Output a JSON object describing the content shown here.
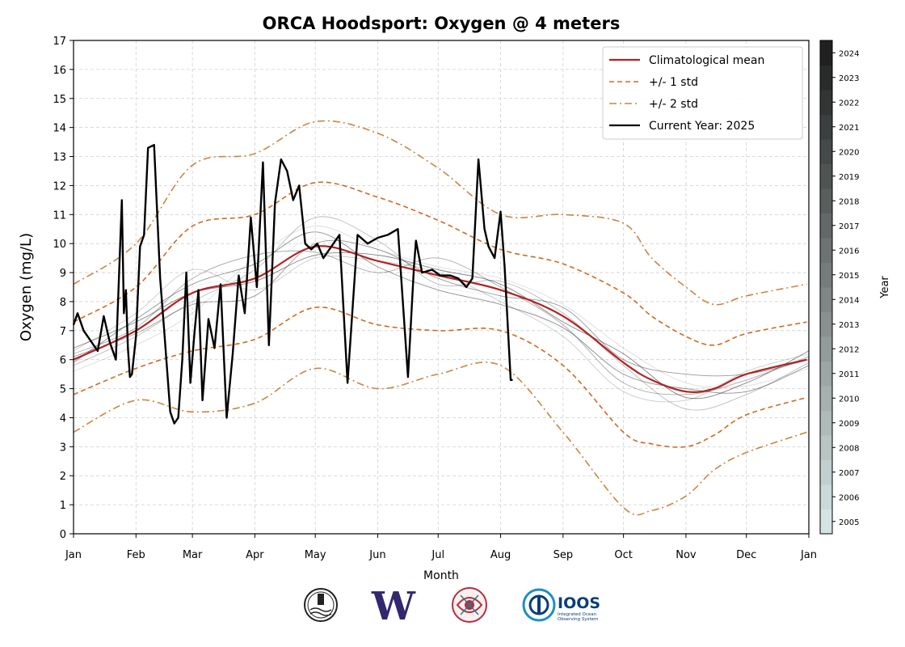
{
  "chart_data": {
    "type": "line",
    "title": "ORCA Hoodsport: Oxygen @ 4 meters",
    "xlabel": "Month",
    "ylabel": "Oxygen (mg/L)",
    "ylim": [
      0,
      17
    ],
    "yticks": [
      0,
      1,
      2,
      3,
      4,
      5,
      6,
      7,
      8,
      9,
      10,
      11,
      12,
      13,
      14,
      15,
      16,
      17
    ],
    "x_tick_labels": [
      "Jan",
      "Feb",
      "Mar",
      "Apr",
      "May",
      "Jun",
      "Jul",
      "Aug",
      "Sep",
      "Oct",
      "Nov",
      "Dec",
      "Jan"
    ],
    "x_tick_days": [
      0,
      31,
      59,
      90,
      120,
      151,
      181,
      212,
      243,
      273,
      304,
      334,
      365
    ],
    "grid": true,
    "legend_position": "top-right",
    "legend": [
      {
        "label": "Climatological mean",
        "color": "#b22222",
        "style": "solid"
      },
      {
        "label": "+/- 1 std",
        "color": "#d2691e",
        "style": "dashed"
      },
      {
        "label": "+/- 2 std",
        "color": "#cd853f",
        "style": "dashdot"
      },
      {
        "label": "Current Year: 2025",
        "color": "#000000",
        "style": "solid"
      }
    ],
    "colorbar": {
      "label": "Year",
      "years": [
        "2005",
        "2006",
        "2007",
        "2008",
        "2009",
        "2010",
        "2011",
        "2012",
        "2013",
        "2014",
        "2015",
        "2016",
        "2017",
        "2018",
        "2019",
        "2020",
        "2021",
        "2022",
        "2023",
        "2024"
      ],
      "color_low": "#d4e4e2",
      "color_high": "#202020"
    },
    "climatology": {
      "x": [
        "Jan 1",
        "Feb 1",
        "Mar 1",
        "Apr 1",
        "May 1",
        "Jun 1",
        "Jul 1",
        "Aug 1",
        "Sep 1",
        "Oct 1",
        "Oct 15",
        "Nov 1",
        "Nov 15",
        "Dec 1",
        "Dec 31"
      ],
      "mean": [
        6.0,
        7.0,
        8.3,
        8.8,
        9.9,
        9.4,
        8.9,
        8.4,
        7.5,
        5.9,
        5.3,
        4.9,
        5.0,
        5.5,
        6.0
      ],
      "upper_1std": [
        7.3,
        8.5,
        10.6,
        11.0,
        12.1,
        11.6,
        10.8,
        9.8,
        9.3,
        8.3,
        7.5,
        6.8,
        6.5,
        6.9,
        7.3
      ],
      "lower_1std": [
        4.8,
        5.7,
        6.3,
        6.7,
        7.8,
        7.2,
        7.0,
        7.0,
        5.8,
        3.5,
        3.1,
        3.0,
        3.4,
        4.1,
        4.7
      ],
      "upper_2std": [
        8.6,
        10.0,
        12.7,
        13.1,
        14.2,
        13.8,
        12.6,
        11.0,
        11.0,
        10.7,
        9.5,
        8.5,
        7.9,
        8.2,
        8.6
      ],
      "lower_2std": [
        3.5,
        4.6,
        4.2,
        4.5,
        5.7,
        5.0,
        5.5,
        5.8,
        3.5,
        0.9,
        0.8,
        1.3,
        2.2,
        2.8,
        3.5
      ]
    },
    "current_year": {
      "name": "Current Year: 2025",
      "x": [
        "Jan 1",
        "Jan 3",
        "Jan 6",
        "Jan 13",
        "Jan 16",
        "Jan 19",
        "Jan 22",
        "Jan 25",
        "Jan 26",
        "Jan 27",
        "Jan 28",
        "Jan 29",
        "Jan 30",
        "Feb 1",
        "Feb 3",
        "Feb 5",
        "Feb 7",
        "Feb 10",
        "Feb 13",
        "Feb 15",
        "Feb 18",
        "Feb 20",
        "Feb 22",
        "Feb 24",
        "Feb 26",
        "Feb 28",
        "Mar 2",
        "Mar 4",
        "Mar 6",
        "Mar 9",
        "Mar 12",
        "Mar 15",
        "Mar 18",
        "Mar 21",
        "Mar 24",
        "Mar 27",
        "Mar 30",
        "Apr 2",
        "Apr 5",
        "Apr 8",
        "Apr 11",
        "Apr 14",
        "Apr 17",
        "Apr 20",
        "Apr 23",
        "Apr 26",
        "Apr 29",
        "May 2",
        "May 5",
        "May 9",
        "May 13",
        "May 17",
        "May 22",
        "May 27",
        "Jun 1",
        "Jun 6",
        "Jun 11",
        "Jun 16",
        "Jun 19",
        "Jun 20",
        "Jun 23",
        "Jun 28",
        "Jul 2",
        "Jul 7",
        "Jul 11",
        "Jul 15",
        "Jul 18",
        "Jul 21",
        "Jul 24",
        "Jul 26",
        "Jul 29",
        "Aug 1",
        "Aug 3",
        "Aug 6",
        "Aug 7"
      ],
      "values": [
        7.2,
        7.6,
        7.0,
        6.3,
        7.5,
        6.6,
        6.0,
        11.5,
        7.6,
        8.4,
        6.4,
        5.4,
        5.5,
        6.8,
        9.9,
        10.3,
        13.3,
        13.4,
        8.8,
        7.0,
        4.2,
        3.8,
        4.0,
        6.0,
        9.0,
        5.2,
        6.9,
        8.4,
        4.6,
        7.4,
        6.4,
        8.6,
        4.0,
        6.2,
        8.9,
        7.6,
        10.9,
        8.5,
        12.8,
        6.5,
        11.4,
        12.9,
        12.5,
        11.5,
        12.0,
        10.0,
        9.8,
        10.0,
        9.5,
        9.9,
        10.3,
        5.2,
        10.3,
        10.0,
        10.2,
        10.3,
        10.5,
        5.4,
        9.2,
        10.1,
        9.0,
        9.1,
        8.9,
        8.9,
        8.8,
        8.5,
        8.8,
        12.9,
        10.5,
        9.9,
        9.5,
        11.1,
        9.2,
        5.3,
        5.3
      ]
    },
    "historical_series": [
      {
        "name": "2005",
        "values": [
          6.0,
          7.2,
          8.5,
          8.9,
          10.2,
          9.0,
          8.5,
          8.1,
          7.0,
          5.6,
          5.0,
          5.4,
          6.0
        ]
      },
      {
        "name": "2008",
        "values": [
          5.6,
          6.5,
          7.6,
          9.5,
          10.6,
          9.8,
          9.2,
          8.8,
          7.9,
          6.4,
          5.2,
          5.1,
          5.7
        ]
      },
      {
        "name": "2011",
        "values": [
          6.3,
          7.6,
          9.1,
          8.4,
          9.5,
          9.4,
          9.0,
          8.0,
          6.8,
          4.9,
          4.6,
          5.6,
          6.2
        ]
      },
      {
        "name": "2014",
        "values": [
          5.8,
          6.8,
          8.0,
          9.1,
          10.9,
          10.1,
          8.6,
          8.7,
          7.6,
          5.8,
          4.3,
          4.8,
          5.9
        ]
      },
      {
        "name": "2017",
        "values": [
          6.2,
          7.1,
          8.8,
          9.6,
          9.7,
          9.0,
          9.5,
          8.5,
          7.2,
          5.2,
          4.8,
          5.3,
          6.1
        ]
      },
      {
        "name": "2020",
        "values": [
          6.1,
          6.9,
          7.9,
          8.2,
          10.0,
          9.8,
          8.8,
          8.2,
          7.8,
          6.0,
          5.5,
          5.5,
          6.0
        ]
      },
      {
        "name": "2022",
        "values": [
          5.9,
          7.4,
          8.6,
          9.3,
          10.4,
          9.2,
          8.4,
          7.9,
          7.1,
          5.5,
          5.0,
          4.9,
          5.8
        ]
      },
      {
        "name": "2024",
        "values": [
          6.4,
          7.3,
          8.3,
          8.7,
          9.6,
          9.6,
          9.1,
          8.6,
          7.3,
          6.2,
          4.7,
          5.2,
          6.3
        ]
      }
    ],
    "historical_x_days": [
      0,
      31,
      59,
      90,
      120,
      151,
      181,
      212,
      243,
      273,
      304,
      334,
      365
    ]
  },
  "logos": [
    {
      "name": "orca-buoy-logo"
    },
    {
      "name": "uw-logo",
      "text": "W"
    },
    {
      "name": "tribal-logo"
    },
    {
      "name": "ioos-logo",
      "text": "IOOS",
      "subtext": "Integrated Ocean Observing System"
    }
  ]
}
